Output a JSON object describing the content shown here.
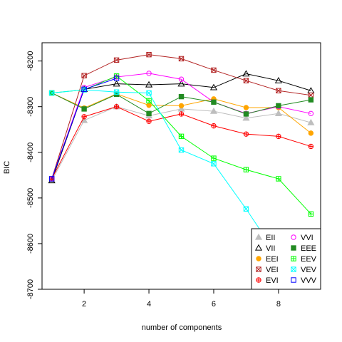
{
  "chart_data": {
    "type": "line",
    "xlabel": "number of components",
    "ylabel": "BIC",
    "xlim": [
      0.7,
      9.3
    ],
    "ylim": [
      -8700,
      -8160
    ],
    "xticks": [
      2,
      4,
      6,
      8
    ],
    "yticks": [
      -8700,
      -8600,
      -8500,
      -8400,
      -8300,
      -8200
    ],
    "legend_position": "bottom-right",
    "x": [
      1,
      2,
      3,
      4,
      5,
      6,
      7,
      8,
      9
    ],
    "series": [
      {
        "name": "EII",
        "color": "#BEBEBE",
        "marker": "triangle-filled",
        "values": [
          -8462,
          -8330,
          -8300,
          -8320,
          -8305,
          -8310,
          -8325,
          -8315,
          -8335
        ]
      },
      {
        "name": "VII",
        "color": "#000000",
        "marker": "triangle-open",
        "values": [
          -8462,
          -8262,
          -8250,
          -8252,
          -8250,
          -8258,
          -8228,
          -8243,
          -8265
        ]
      },
      {
        "name": "EEI",
        "color": "#FFA500",
        "marker": "circle-filled",
        "values": [
          -8270,
          -8303,
          -8272,
          -8297,
          -8298,
          -8283,
          -8302,
          -8302,
          -8358
        ]
      },
      {
        "name": "VEI",
        "color": "#B22222",
        "marker": "square-x",
        "values": [
          -8458,
          -8232,
          -8198,
          -8186,
          -8195,
          -8220,
          -8243,
          -8265,
          -8275
        ]
      },
      {
        "name": "EVI",
        "color": "#FF0000",
        "marker": "circle-cross",
        "values": [
          -8458,
          -8322,
          -8300,
          -8332,
          -8316,
          -8342,
          -8360,
          -8365,
          -8387
        ]
      },
      {
        "name": "VVI",
        "color": "#FF00FF",
        "marker": "circle-open",
        "values": [
          -8458,
          -8258,
          -8235,
          -8227,
          -8240,
          -8290,
          -8315,
          -8300,
          -8315
        ]
      },
      {
        "name": "EEE",
        "color": "#228B22",
        "marker": "square-filled",
        "values": [
          -8270,
          -8305,
          -8273,
          -8315,
          -8278,
          -8290,
          -8316,
          -8298,
          -8285
        ]
      },
      {
        "name": "EEV",
        "color": "#00FF00",
        "marker": "square-cross",
        "values": [
          -8270,
          -8263,
          -8233,
          -8287,
          -8365,
          -8413,
          -8438,
          -8458,
          -8535
        ]
      },
      {
        "name": "VEV",
        "color": "#00FFFF",
        "marker": "square-x",
        "values": [
          -8270,
          -8263,
          -8268,
          -8270,
          -8395,
          -8425,
          -8524,
          -8630,
          null
        ]
      },
      {
        "name": "VVV",
        "color": "#0000FF",
        "marker": "square-open",
        "values": [
          -8458,
          -8262,
          -8238,
          null,
          null,
          null,
          null,
          null,
          null
        ]
      }
    ]
  }
}
